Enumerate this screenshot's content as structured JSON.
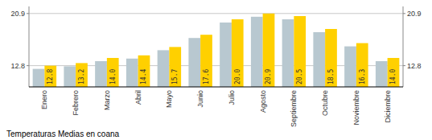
{
  "chart_data": {
    "type": "bar",
    "title": "Temperaturas Medias en coana",
    "categories": [
      "Enero",
      "Febrero",
      "Marzo",
      "Abril",
      "Mayo",
      "Junio",
      "Julio",
      "Agosto",
      "Septiembre",
      "Octubre",
      "Noviembre",
      "Diciembre"
    ],
    "series": [
      {
        "color": "#B8C8D0",
        "values": [
          12.3,
          12.7,
          13.5,
          13.9,
          15.2,
          17.1,
          19.5,
          20.4,
          20.0,
          18.0,
          15.8,
          13.5
        ]
      },
      {
        "color": "#FFD000",
        "values": [
          12.8,
          13.2,
          14.0,
          14.4,
          15.7,
          17.6,
          20.0,
          20.9,
          20.5,
          18.5,
          16.3,
          14.0
        ],
        "value_labels": [
          "12.8",
          "13.2",
          "14.0",
          "14.4",
          "15.7",
          "17.6",
          "20.0",
          "20.9",
          "20.5",
          "18.5",
          "16.3",
          "14.0"
        ],
        "data_labels": true
      }
    ],
    "ylim": [
      9.5,
      22.0
    ],
    "yticks": [
      12.8,
      20.9
    ],
    "y2lim": [
      9.5,
      22.0
    ],
    "y2ticks": [
      12.8,
      20.9
    ],
    "grid": true
  }
}
